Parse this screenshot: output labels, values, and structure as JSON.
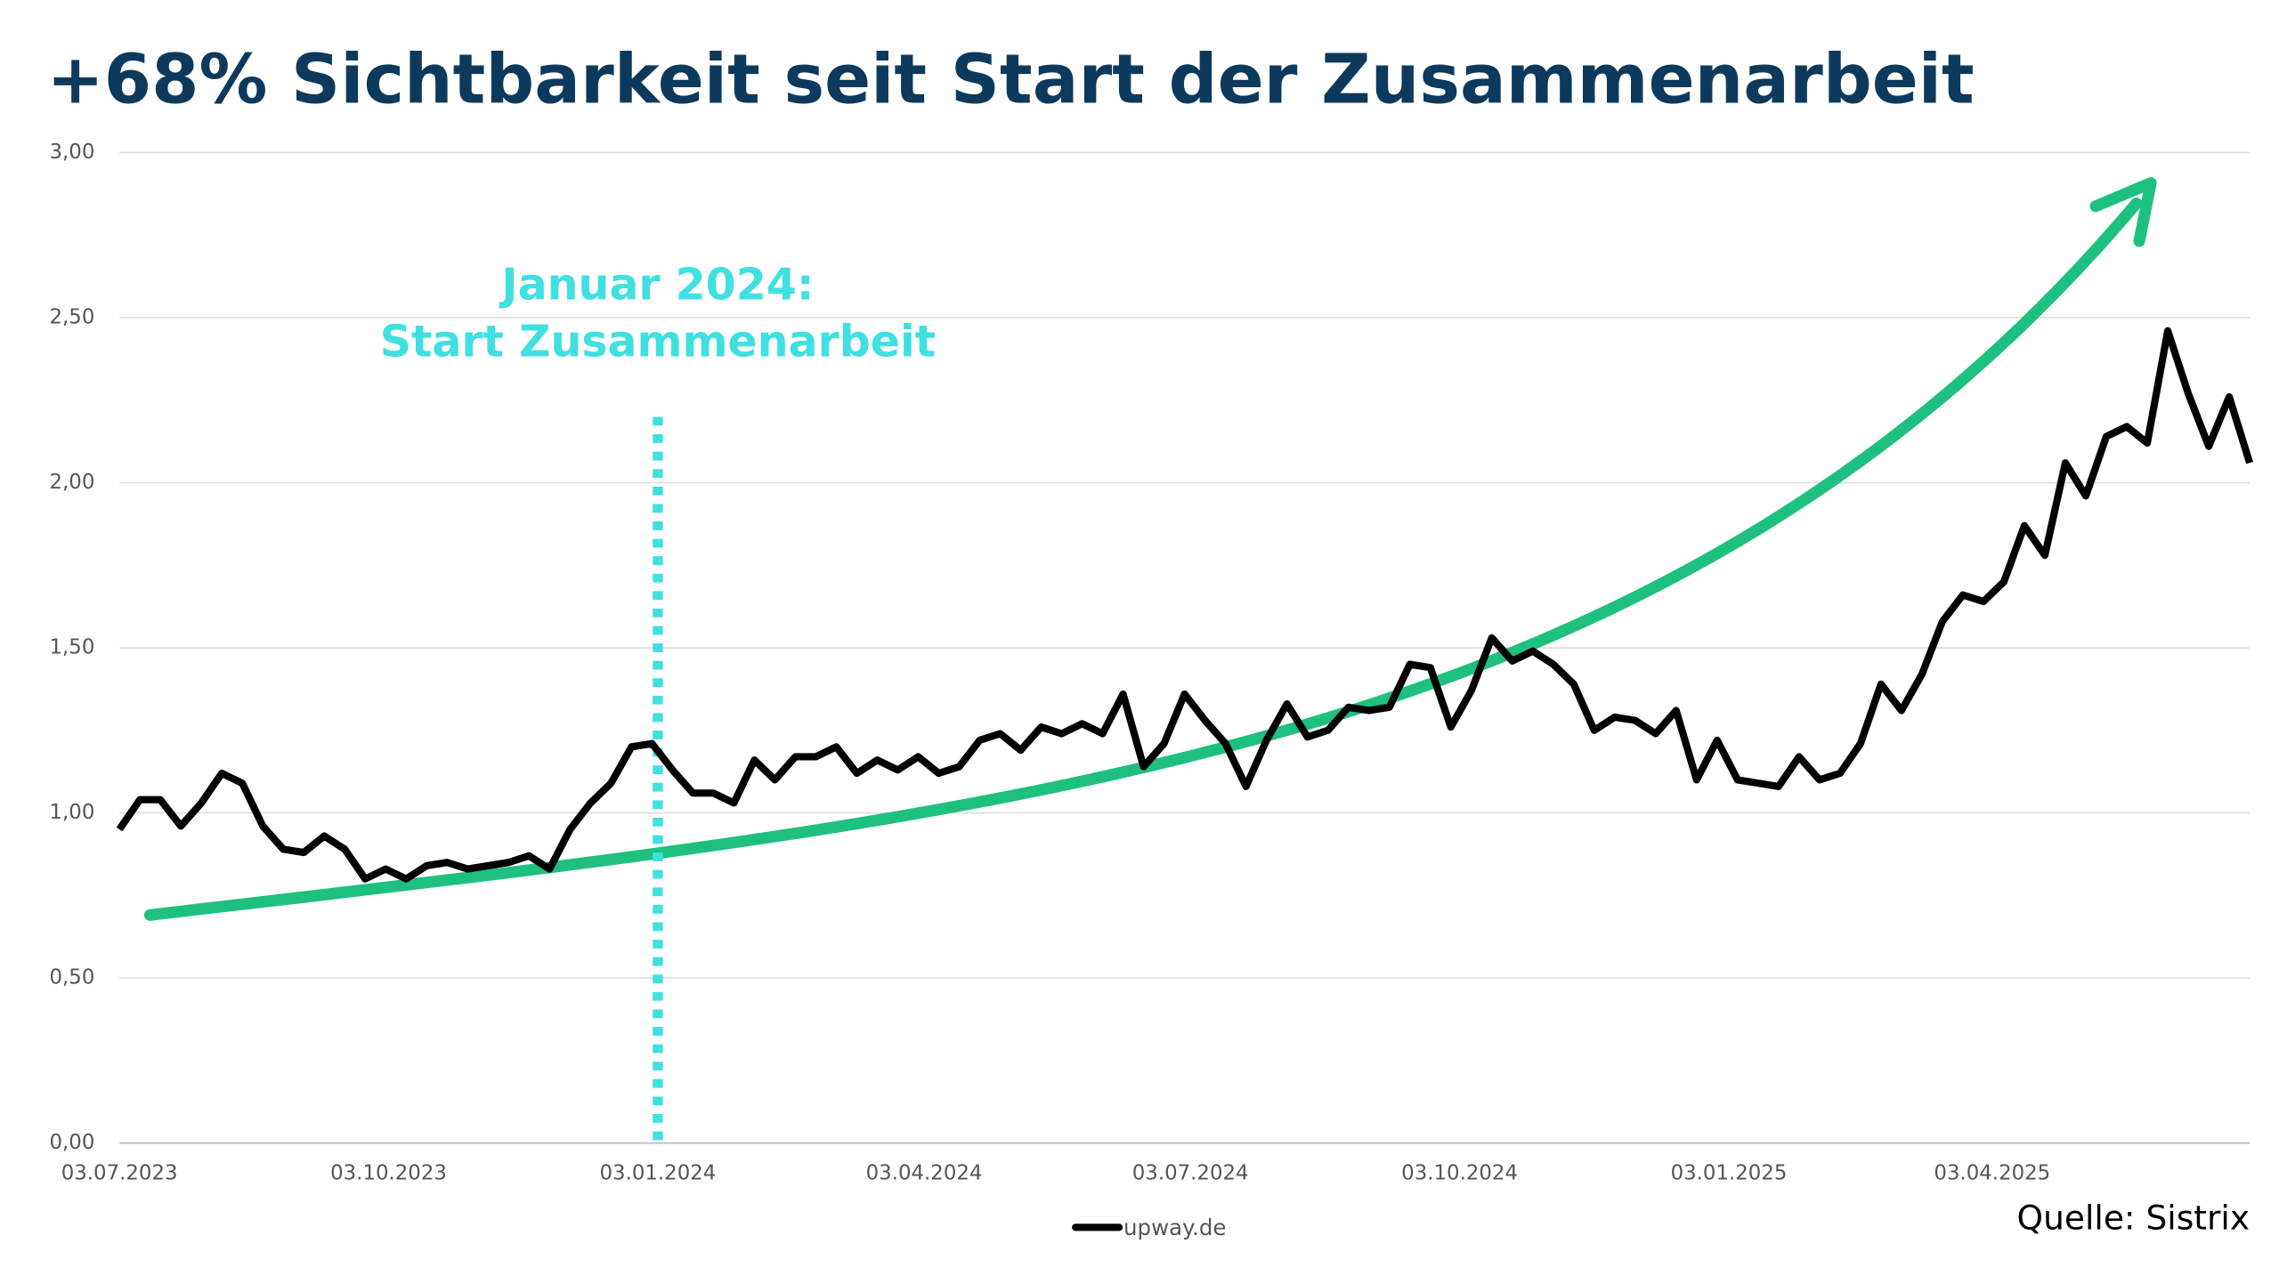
{
  "chart_data": {
    "type": "line",
    "title": "+68% Sichtbarkeit seit Start der Zusammenarbeit",
    "x": [
      "03.07.2023",
      "10.07.2023",
      "17.07.2023",
      "24.07.2023",
      "31.07.2023",
      "07.08.2023",
      "14.08.2023",
      "21.08.2023",
      "28.08.2023",
      "04.09.2023",
      "11.09.2023",
      "18.09.2023",
      "25.09.2023",
      "02.10.2023",
      "09.10.2023",
      "16.10.2023",
      "23.10.2023",
      "30.10.2023",
      "06.11.2023",
      "13.11.2023",
      "20.11.2023",
      "27.11.2023",
      "04.12.2023",
      "11.12.2023",
      "18.12.2023",
      "25.12.2023",
      "01.01.2024",
      "08.01.2024",
      "15.01.2024",
      "22.01.2024",
      "29.01.2024",
      "05.02.2024",
      "12.02.2024",
      "19.02.2024",
      "26.02.2024",
      "04.03.2024",
      "11.03.2024",
      "18.03.2024",
      "25.03.2024",
      "01.04.2024",
      "08.04.2024",
      "15.04.2024",
      "22.04.2024",
      "29.04.2024",
      "06.05.2024",
      "13.05.2024",
      "20.05.2024",
      "27.05.2024",
      "03.06.2024",
      "10.06.2024",
      "17.06.2024",
      "24.06.2024",
      "01.07.2024",
      "08.07.2024",
      "15.07.2024",
      "22.07.2024",
      "29.07.2024",
      "05.08.2024",
      "12.08.2024",
      "19.08.2024",
      "26.08.2024",
      "02.09.2024",
      "09.09.2024",
      "16.09.2024",
      "23.09.2024",
      "30.09.2024",
      "07.10.2024",
      "14.10.2024",
      "21.10.2024",
      "28.10.2024",
      "04.11.2024",
      "11.11.2024",
      "18.11.2024",
      "25.11.2024",
      "02.12.2024",
      "09.12.2024",
      "16.12.2024",
      "23.12.2024",
      "30.12.2024",
      "06.01.2025",
      "13.01.2025",
      "20.01.2025",
      "27.01.2025",
      "03.02.2025",
      "10.02.2025",
      "17.02.2025",
      "24.02.2025",
      "03.03.2025",
      "10.03.2025",
      "17.03.2025",
      "24.03.2025",
      "31.03.2025",
      "07.04.2025",
      "14.04.2025",
      "21.04.2025",
      "28.04.2025",
      "05.05.2025",
      "12.05.2025",
      "19.05.2025",
      "26.05.2025",
      "02.06.2025",
      "09.06.2025",
      "16.06.2025",
      "23.06.2025",
      "30.06.2025"
    ],
    "series": [
      {
        "name": "upway.de",
        "color": "#000000",
        "values": [
          0.95,
          1.04,
          1.04,
          0.96,
          1.03,
          1.12,
          1.09,
          0.96,
          0.89,
          0.88,
          0.93,
          0.89,
          0.8,
          0.83,
          0.8,
          0.84,
          0.85,
          0.83,
          0.84,
          0.85,
          0.87,
          0.83,
          0.95,
          1.03,
          1.09,
          1.2,
          1.21,
          1.13,
          1.06,
          1.06,
          1.03,
          1.16,
          1.1,
          1.17,
          1.17,
          1.2,
          1.12,
          1.16,
          1.13,
          1.17,
          1.12,
          1.14,
          1.22,
          1.24,
          1.19,
          1.26,
          1.24,
          1.27,
          1.24,
          1.36,
          1.14,
          1.21,
          1.36,
          1.28,
          1.21,
          1.08,
          1.22,
          1.33,
          1.23,
          1.25,
          1.32,
          1.31,
          1.32,
          1.45,
          1.44,
          1.26,
          1.37,
          1.53,
          1.46,
          1.49,
          1.45,
          1.39,
          1.25,
          1.29,
          1.28,
          1.24,
          1.31,
          1.1,
          1.22,
          1.1,
          1.09,
          1.08,
          1.17,
          1.1,
          1.12,
          1.21,
          1.39,
          1.31,
          1.42,
          1.58,
          1.66,
          1.64,
          1.7,
          1.87,
          1.78,
          2.06,
          1.96,
          2.14,
          2.17,
          2.12,
          2.46,
          2.27,
          2.11,
          2.26,
          2.06
        ]
      }
    ],
    "xlim": [
      "03.07.2023",
      "30.06.2025"
    ],
    "xticks": [
      "03.07.2023",
      "03.10.2023",
      "03.01.2024",
      "03.04.2024",
      "03.07.2024",
      "03.10.2024",
      "03.01.2025",
      "03.04.2025"
    ],
    "ylim": [
      0,
      3
    ],
    "yticks": [
      {
        "value": 0,
        "label": "0,00"
      },
      {
        "value": 0.5,
        "label": "0,50"
      },
      {
        "value": 1,
        "label": "1,00"
      },
      {
        "value": 1.5,
        "label": "1,50"
      },
      {
        "value": 2,
        "label": "2,00"
      },
      {
        "value": 2.5,
        "label": "2,50"
      },
      {
        "value": 3,
        "label": "3,00"
      }
    ],
    "grid": true,
    "annotation": {
      "lines": [
        "Januar 2024:",
        "Start Zusammenarbeit"
      ],
      "x": "03.01.2024",
      "color": "#40e0e0"
    },
    "source": "Quelle: Sistrix"
  }
}
